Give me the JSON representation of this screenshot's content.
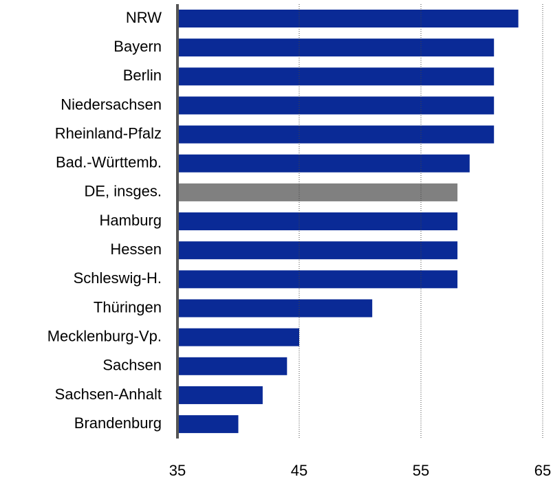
{
  "chart_data": {
    "type": "bar",
    "orientation": "horizontal",
    "categories": [
      "NRW",
      "Bayern",
      "Berlin",
      "Niedersachsen",
      "Rheinland-Pfalz",
      "Bad.-Württemb.",
      "DE, insges.",
      "Hamburg",
      "Hessen",
      "Schleswig-H.",
      "Thüringen",
      "Mecklenburg-Vp.",
      "Sachsen",
      "Sachsen-Anhalt",
      "Brandenburg"
    ],
    "values": [
      63,
      61,
      61,
      61,
      61,
      59,
      58,
      58,
      58,
      58,
      51,
      45,
      44,
      42,
      40
    ],
    "colors": [
      "#0a2a96",
      "#0a2a96",
      "#0a2a96",
      "#0a2a96",
      "#0a2a96",
      "#0a2a96",
      "#808080",
      "#0a2a96",
      "#0a2a96",
      "#0a2a96",
      "#0a2a96",
      "#0a2a96",
      "#0a2a96",
      "#0a2a96",
      "#0a2a96"
    ],
    "xlim": [
      35,
      65
    ],
    "xticks": [
      35,
      45,
      55,
      65
    ],
    "grid": true
  }
}
